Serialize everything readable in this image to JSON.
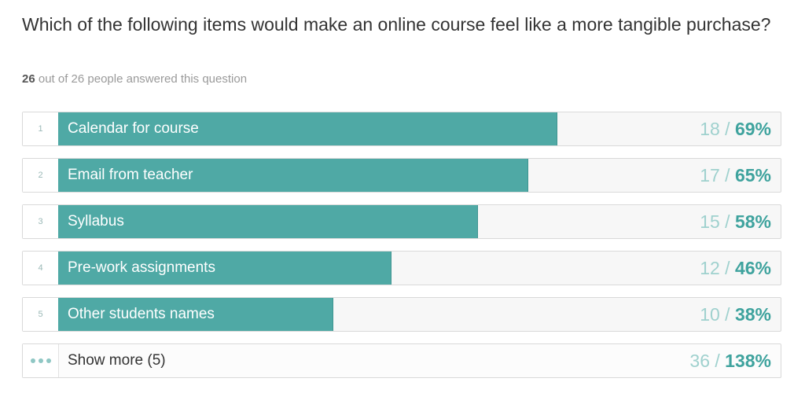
{
  "question": {
    "title": "Which of the following items would make an online course feel like a more tangible purchase?",
    "answered_count": "26",
    "answered_suffix": "out of 26 people answered this question"
  },
  "options": [
    {
      "rank": "1",
      "label": "Calendar for course",
      "count": "18",
      "percent": "69%",
      "fraction": 0.69
    },
    {
      "rank": "2",
      "label": "Email from teacher",
      "count": "17",
      "percent": "65%",
      "fraction": 0.65
    },
    {
      "rank": "3",
      "label": "Syllabus",
      "count": "15",
      "percent": "58%",
      "fraction": 0.58
    },
    {
      "rank": "4",
      "label": "Pre-work assignments",
      "count": "12",
      "percent": "46%",
      "fraction": 0.46
    },
    {
      "rank": "5",
      "label": "Other students names",
      "count": "10",
      "percent": "38%",
      "fraction": 0.38
    }
  ],
  "show_more": {
    "label": "Show more (5)",
    "count": "36",
    "percent": "138%",
    "icon": "ellipsis-icon"
  },
  "colors": {
    "bar_fill": "#4fa9a5",
    "percent_text": "#3fa39e",
    "count_text": "#9fd1ce"
  }
}
